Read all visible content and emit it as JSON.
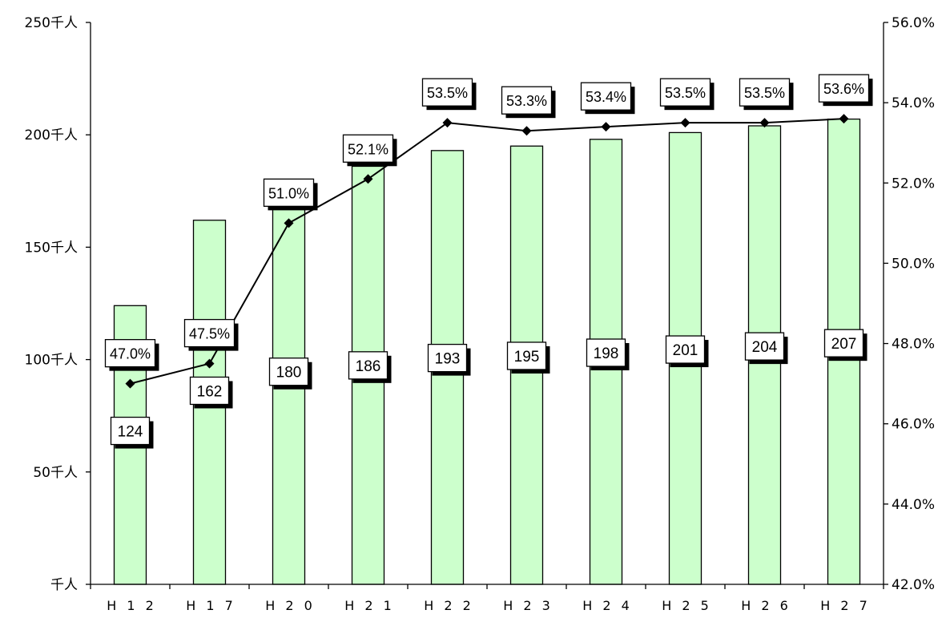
{
  "chart_data": {
    "type": "bar",
    "categories": [
      "H12",
      "H17",
      "H20",
      "H21",
      "H22",
      "H23",
      "H24",
      "H25",
      "H26",
      "H27"
    ],
    "category_labels": [
      "H 1 2",
      "H 1 7",
      "H 2 0",
      "H 2 1",
      "H 2 2",
      "H 2 3",
      "H 2 4",
      "H 2 5",
      "H 2 6",
      "H 2 7"
    ],
    "series": [
      {
        "values": [
          124,
          162,
          180,
          186,
          193,
          195,
          198,
          201,
          204,
          207
        ],
        "axis": "left",
        "kind": "bar",
        "color": "#ccffcc",
        "labels": [
          "124",
          "162",
          "180",
          "186",
          "193",
          "195",
          "198",
          "201",
          "204",
          "207"
        ]
      },
      {
        "values": [
          47.0,
          47.5,
          51.0,
          52.1,
          53.5,
          53.3,
          53.4,
          53.5,
          53.5,
          53.6
        ],
        "axis": "right",
        "kind": "line",
        "color": "#000000",
        "labels": [
          "47.0%",
          "47.5%",
          "51.0%",
          "52.1%",
          "53.5%",
          "53.3%",
          "53.4%",
          "53.5%",
          "53.5%",
          "53.6%"
        ]
      }
    ],
    "y_left": {
      "ylim": [
        0,
        250
      ],
      "ticks": [
        0,
        50,
        100,
        150,
        200,
        250
      ],
      "tick_labels": [
        "千人",
        "50千人",
        "100千人",
        "150千人",
        "200千人",
        "250千人"
      ]
    },
    "y_right": {
      "ylim": [
        42.0,
        56.0
      ],
      "ticks": [
        42,
        44,
        46,
        48,
        50,
        52,
        54,
        56
      ],
      "tick_labels": [
        "42.0%",
        "44.0%",
        "46.0%",
        "48.0%",
        "50.0%",
        "52.0%",
        "54.0%",
        "56.0%"
      ]
    },
    "grid": false,
    "legend": "none"
  }
}
